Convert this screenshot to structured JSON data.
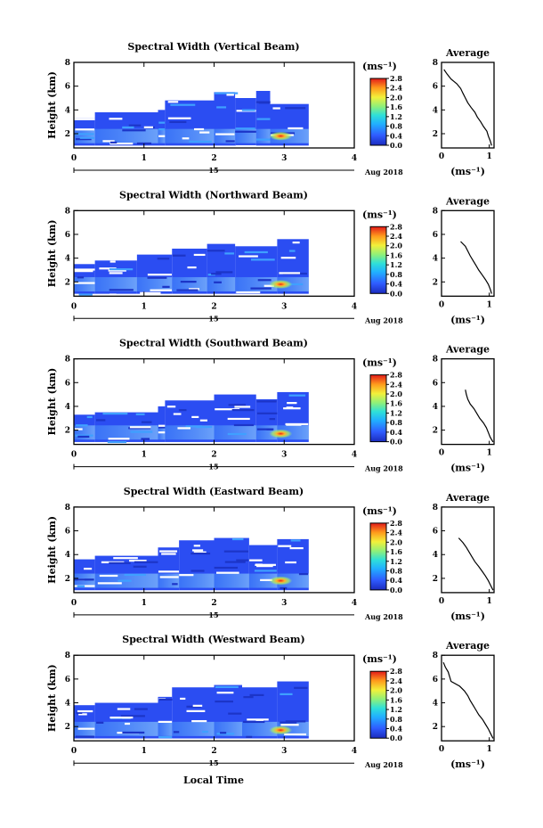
{
  "figure": {
    "xlabel": "Local Time",
    "date_day": "15",
    "date_month_year": "Aug 2018",
    "colorbar_unit": "(ms⁻¹)"
  },
  "chart_data": [
    {
      "type": "heatmap",
      "title": "Spectral Width (Vertical Beam)",
      "ylabel": "Height (km)",
      "xlim": [
        0,
        4
      ],
      "ylim": [
        0.8,
        8
      ],
      "x_ticks": [
        "0",
        "1",
        "2",
        "3",
        "4"
      ],
      "y_ticks": [
        "2",
        "4",
        "6",
        "8"
      ],
      "colorbar": {
        "range": [
          0,
          2.8
        ],
        "ticks": [
          "0.0",
          "0.4",
          "0.8",
          "1.2",
          "1.6",
          "2.0",
          "2.4",
          "2.8"
        ]
      },
      "coverage": [
        {
          "x": [
            0.0,
            0.3
          ],
          "top": 3.3
        },
        {
          "x": [
            0.3,
            1.2
          ],
          "top": 3.8
        },
        {
          "x": [
            1.2,
            1.3
          ],
          "top": 4.0
        },
        {
          "x": [
            1.3,
            2.0
          ],
          "top": 4.8
        },
        {
          "x": [
            2.0,
            2.3
          ],
          "top": 5.5
        },
        {
          "x": [
            2.3,
            2.6
          ],
          "top": 5.0
        },
        {
          "x": [
            2.6,
            2.8
          ],
          "top": 5.6
        },
        {
          "x": [
            2.8,
            3.35
          ],
          "top": 4.5
        }
      ],
      "hotspot": {
        "x": 2.95,
        "y": 1.8
      },
      "profile": {
        "title": "Average",
        "xlabel": "(ms⁻¹)",
        "xlim": [
          0,
          1.1
        ],
        "ylim": [
          0.8,
          8
        ],
        "x_ticks": [
          "0",
          "1"
        ],
        "y_ticks": [
          "2",
          "4",
          "6",
          "8"
        ],
        "height": [
          1.0,
          1.4,
          1.8,
          2.2,
          2.6,
          3.0,
          3.4,
          3.8,
          4.2,
          4.6,
          5.0,
          5.4,
          5.8,
          6.2,
          6.6,
          7.0,
          7.4
        ],
        "width": [
          1.05,
          1.02,
          0.98,
          0.95,
          0.88,
          0.82,
          0.75,
          0.7,
          0.62,
          0.55,
          0.5,
          0.45,
          0.4,
          0.32,
          0.2,
          0.12,
          0.05
        ]
      }
    },
    {
      "type": "heatmap",
      "title": "Spectral Width (Northward Beam)",
      "ylabel": "Height (km)",
      "xlim": [
        0,
        4
      ],
      "ylim": [
        0.8,
        8
      ],
      "x_ticks": [
        "0",
        "1",
        "2",
        "3",
        "4"
      ],
      "y_ticks": [
        "2",
        "4",
        "6",
        "8"
      ],
      "colorbar": {
        "range": [
          0,
          2.8
        ],
        "ticks": [
          "0.0",
          "0.4",
          "0.8",
          "1.2",
          "1.6",
          "2.0",
          "2.4",
          "2.8"
        ]
      },
      "coverage": [
        {
          "x": [
            0.0,
            0.3
          ],
          "top": 3.5
        },
        {
          "x": [
            0.3,
            0.9
          ],
          "top": 3.8
        },
        {
          "x": [
            0.9,
            1.4
          ],
          "top": 4.3
        },
        {
          "x": [
            1.4,
            1.9
          ],
          "top": 4.8
        },
        {
          "x": [
            1.9,
            2.3
          ],
          "top": 5.2
        },
        {
          "x": [
            2.3,
            2.9
          ],
          "top": 5.0
        },
        {
          "x": [
            2.9,
            3.35
          ],
          "top": 5.6
        }
      ],
      "hotspot": {
        "x": 2.95,
        "y": 1.8
      },
      "profile": {
        "title": "Average",
        "xlabel": "(ms⁻¹)",
        "xlim": [
          0,
          1.1
        ],
        "ylim": [
          0.8,
          8
        ],
        "x_ticks": [
          "0",
          "1"
        ],
        "y_ticks": [
          "2",
          "4",
          "6",
          "8"
        ],
        "height": [
          1.0,
          1.4,
          1.8,
          2.2,
          2.6,
          3.0,
          3.4,
          3.8,
          4.2,
          4.6,
          5.0,
          5.4
        ],
        "width": [
          1.05,
          1.02,
          0.98,
          0.92,
          0.85,
          0.78,
          0.72,
          0.66,
          0.6,
          0.55,
          0.5,
          0.4
        ]
      }
    },
    {
      "type": "heatmap",
      "title": "Spectral Width (Southward Beam)",
      "ylabel": "Height (km)",
      "xlim": [
        0,
        4
      ],
      "ylim": [
        0.8,
        8
      ],
      "x_ticks": [
        "0",
        "1",
        "2",
        "3",
        "4"
      ],
      "y_ticks": [
        "2",
        "4",
        "6",
        "8"
      ],
      "colorbar": {
        "range": [
          0,
          2.8
        ],
        "ticks": [
          "0.0",
          "0.4",
          "0.8",
          "1.2",
          "1.6",
          "2.0",
          "2.4",
          "2.8"
        ]
      },
      "coverage": [
        {
          "x": [
            0.0,
            0.3
          ],
          "top": 3.3
        },
        {
          "x": [
            0.3,
            1.2
          ],
          "top": 3.5
        },
        {
          "x": [
            1.2,
            1.3
          ],
          "top": 4.0
        },
        {
          "x": [
            1.3,
            2.0
          ],
          "top": 4.5
        },
        {
          "x": [
            2.0,
            2.6
          ],
          "top": 5.0
        },
        {
          "x": [
            2.6,
            2.9
          ],
          "top": 4.6
        },
        {
          "x": [
            2.9,
            3.35
          ],
          "top": 5.2
        }
      ],
      "hotspot": {
        "x": 2.95,
        "y": 1.7
      },
      "profile": {
        "title": "Average",
        "xlabel": "(ms⁻¹)",
        "xlim": [
          0,
          1.1
        ],
        "ylim": [
          0.8,
          8
        ],
        "x_ticks": [
          "0",
          "1"
        ],
        "y_ticks": [
          "2",
          "4",
          "6",
          "8"
        ],
        "height": [
          1.0,
          1.4,
          1.8,
          2.2,
          2.6,
          3.0,
          3.4,
          3.8,
          4.2,
          4.6,
          5.0,
          5.4
        ],
        "width": [
          1.08,
          1.02,
          0.98,
          0.94,
          0.88,
          0.8,
          0.74,
          0.68,
          0.6,
          0.55,
          0.52,
          0.5
        ]
      }
    },
    {
      "type": "heatmap",
      "title": "Spectral Width (Eastward Beam)",
      "ylabel": "Height (km)",
      "xlim": [
        0,
        4
      ],
      "ylim": [
        0.8,
        8
      ],
      "x_ticks": [
        "0",
        "1",
        "2",
        "3",
        "4"
      ],
      "y_ticks": [
        "2",
        "4",
        "6",
        "8"
      ],
      "colorbar": {
        "range": [
          0,
          2.8
        ],
        "ticks": [
          "0.0",
          "0.4",
          "0.8",
          "1.2",
          "1.6",
          "2.0",
          "2.4",
          "2.8"
        ]
      },
      "coverage": [
        {
          "x": [
            0.0,
            0.3
          ],
          "top": 3.6
        },
        {
          "x": [
            0.3,
            1.2
          ],
          "top": 3.9
        },
        {
          "x": [
            1.2,
            1.5
          ],
          "top": 4.6
        },
        {
          "x": [
            1.5,
            2.0
          ],
          "top": 5.2
        },
        {
          "x": [
            2.0,
            2.5
          ],
          "top": 5.4
        },
        {
          "x": [
            2.5,
            2.9
          ],
          "top": 4.8
        },
        {
          "x": [
            2.9,
            3.35
          ],
          "top": 5.3
        }
      ],
      "hotspot": {
        "x": 2.95,
        "y": 1.8
      },
      "profile": {
        "title": "Average",
        "xlabel": "(ms⁻¹)",
        "xlim": [
          0,
          1.1
        ],
        "ylim": [
          0.8,
          8
        ],
        "x_ticks": [
          "0",
          "1"
        ],
        "y_ticks": [
          "2",
          "4",
          "6",
          "8"
        ],
        "height": [
          1.0,
          1.4,
          1.8,
          2.2,
          2.6,
          3.0,
          3.4,
          3.8,
          4.2,
          4.6,
          5.0,
          5.4
        ],
        "width": [
          1.08,
          1.03,
          0.98,
          0.92,
          0.85,
          0.78,
          0.7,
          0.64,
          0.58,
          0.52,
          0.45,
          0.36
        ]
      }
    },
    {
      "type": "heatmap",
      "title": "Spectral Width (Westward Beam)",
      "ylabel": "Height (km)",
      "xlim": [
        0,
        4
      ],
      "ylim": [
        0.8,
        8
      ],
      "x_ticks": [
        "0",
        "1",
        "2",
        "3",
        "4"
      ],
      "y_ticks": [
        "2",
        "4",
        "6",
        "8"
      ],
      "colorbar": {
        "range": [
          0,
          2.8
        ],
        "ticks": [
          "0.0",
          "0.4",
          "0.8",
          "1.2",
          "1.6",
          "2.0",
          "2.4",
          "2.8"
        ]
      },
      "coverage": [
        {
          "x": [
            0.0,
            0.3
          ],
          "top": 3.8
        },
        {
          "x": [
            0.3,
            1.2
          ],
          "top": 4.0
        },
        {
          "x": [
            1.2,
            1.4
          ],
          "top": 4.5
        },
        {
          "x": [
            1.4,
            2.0
          ],
          "top": 5.3
        },
        {
          "x": [
            2.0,
            2.4
          ],
          "top": 5.5
        },
        {
          "x": [
            2.4,
            2.9
          ],
          "top": 5.3
        },
        {
          "x": [
            2.9,
            3.35
          ],
          "top": 5.8
        }
      ],
      "hotspot": {
        "x": 2.95,
        "y": 1.7
      },
      "profile": {
        "title": "Average",
        "xlabel": "(ms⁻¹)",
        "xlim": [
          0,
          1.1
        ],
        "ylim": [
          0.8,
          8
        ],
        "x_ticks": [
          "0",
          "1"
        ],
        "y_ticks": [
          "2",
          "4",
          "6",
          "8"
        ],
        "height": [
          1.0,
          1.4,
          1.8,
          2.2,
          2.6,
          3.0,
          3.4,
          3.8,
          4.2,
          4.6,
          5.0,
          5.4,
          5.8,
          6.6,
          7.0,
          7.4
        ],
        "width": [
          1.08,
          1.03,
          0.98,
          0.92,
          0.86,
          0.78,
          0.72,
          0.66,
          0.6,
          0.55,
          0.48,
          0.38,
          0.2,
          0.14,
          0.08,
          0.04
        ]
      }
    }
  ]
}
